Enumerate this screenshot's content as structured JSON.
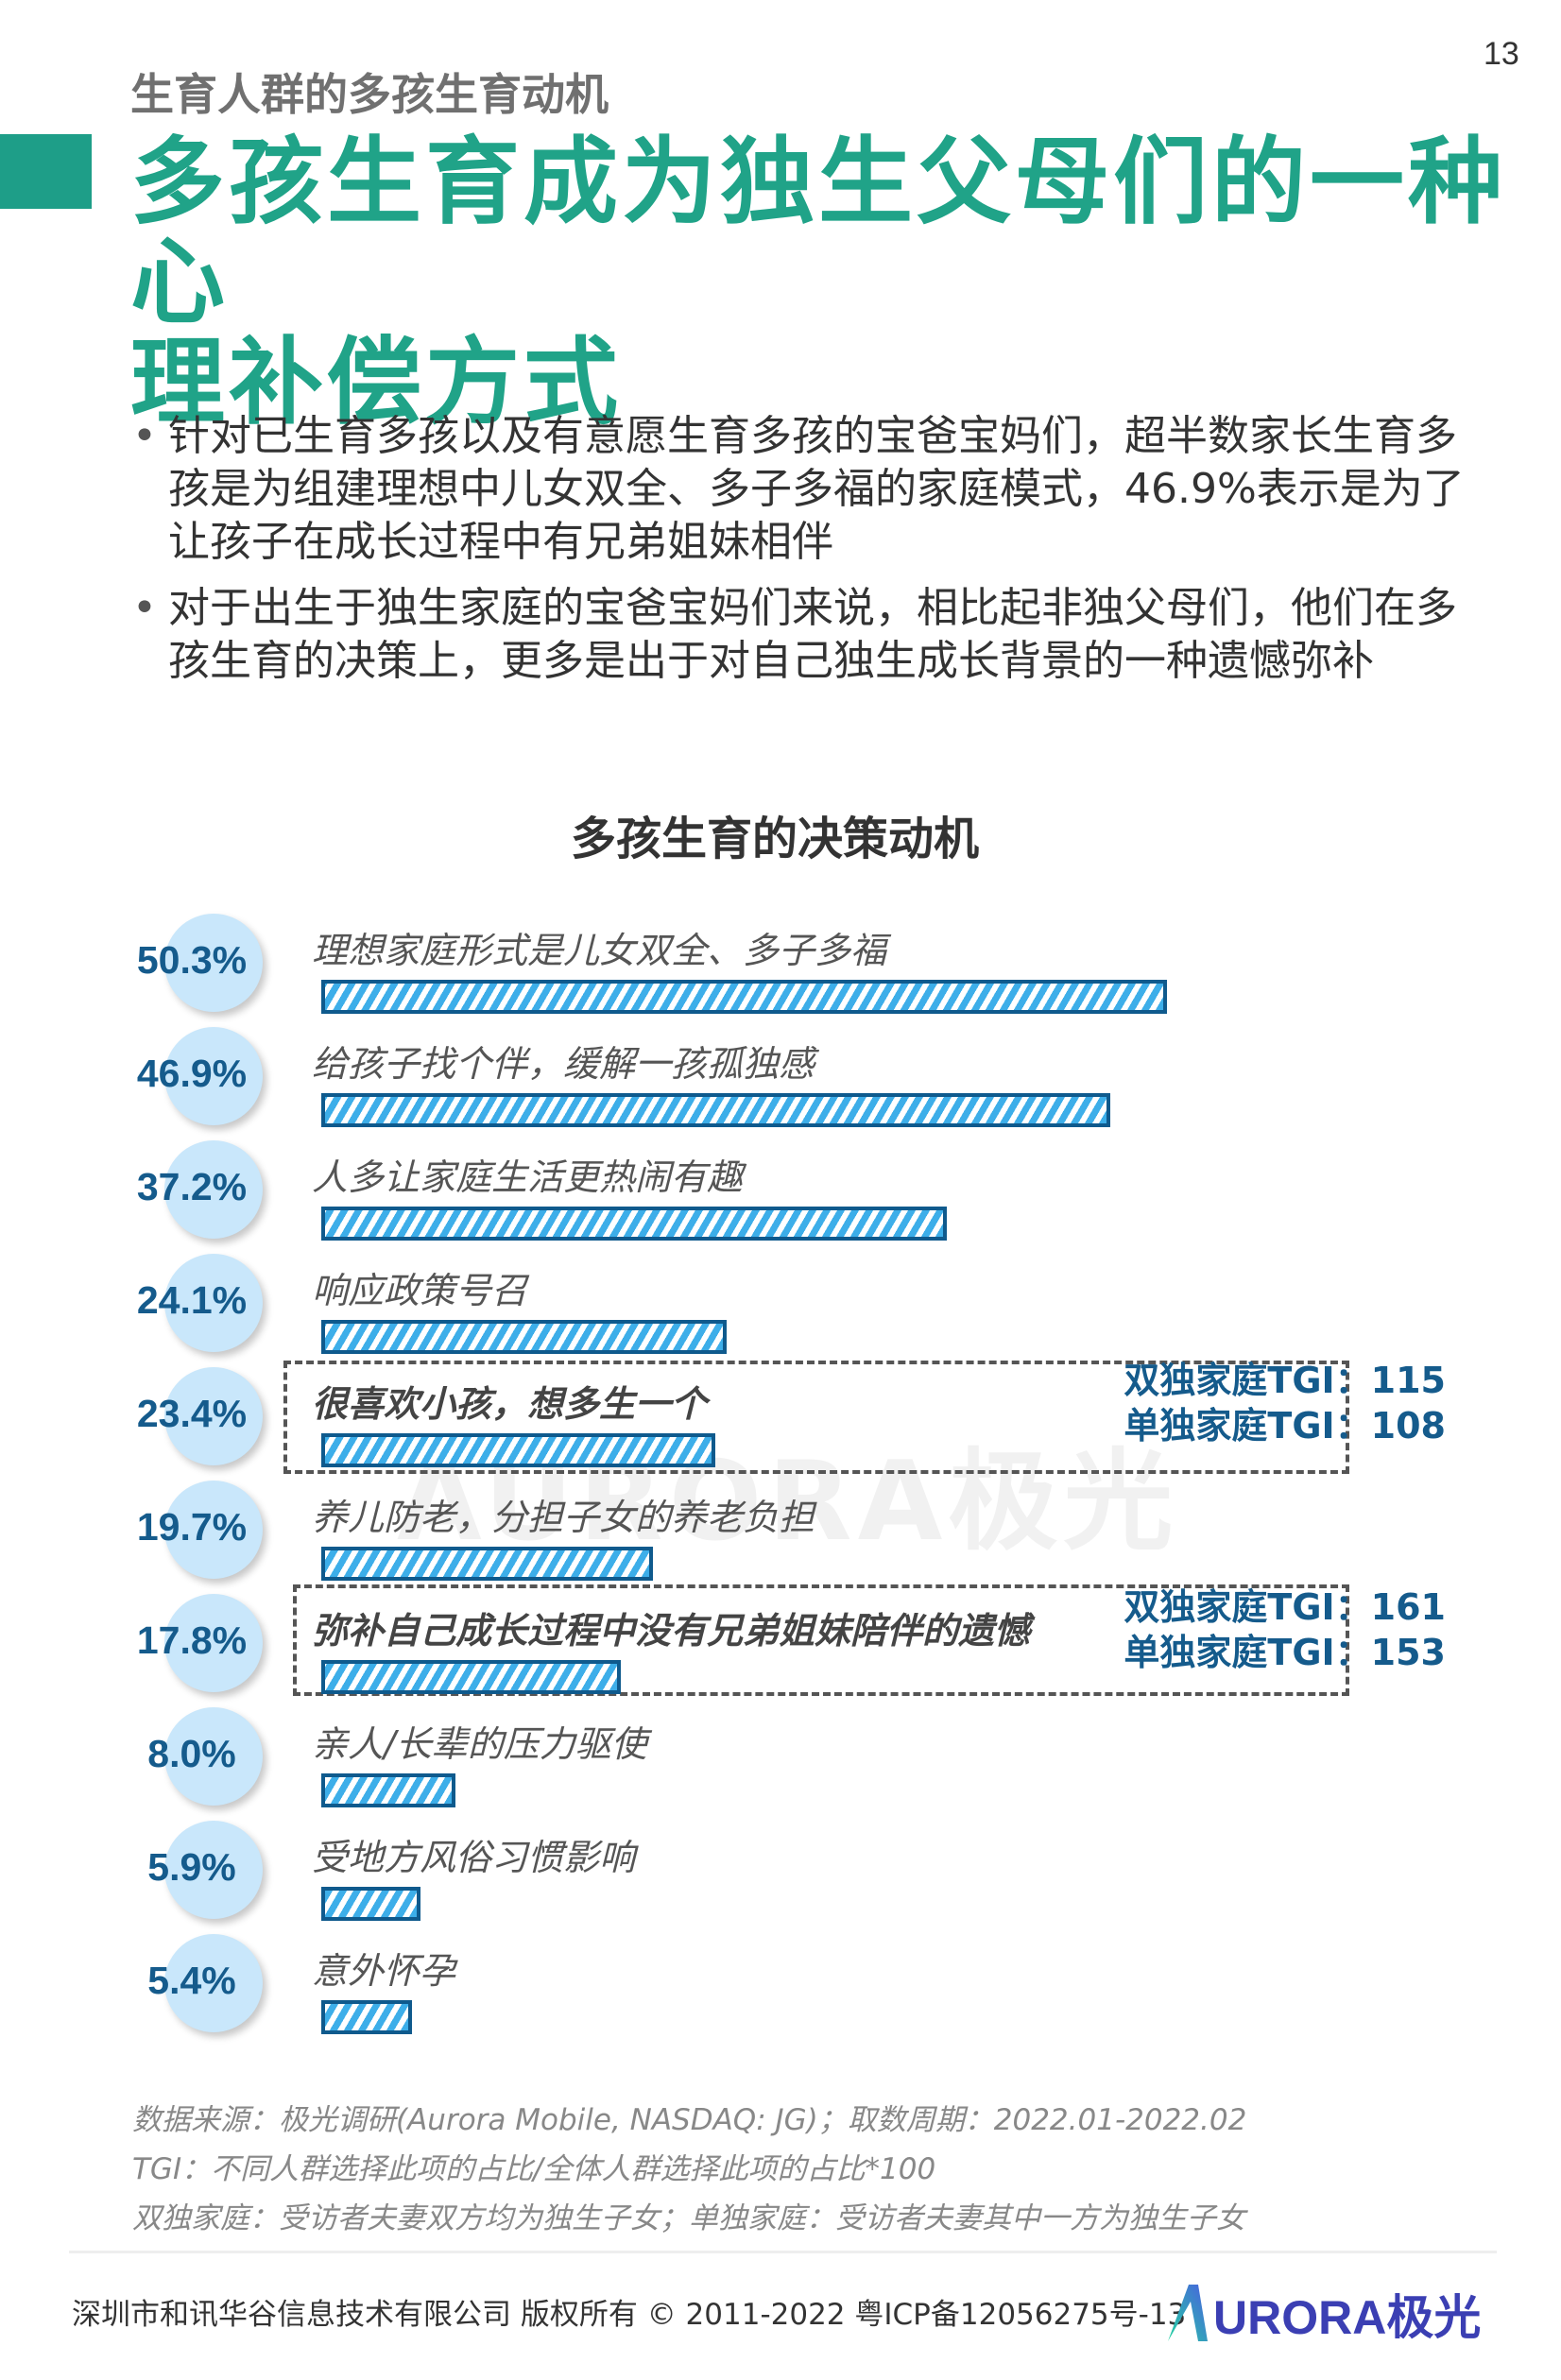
{
  "page_number": "13",
  "header": {
    "section": "生育人群的多孩生育动机",
    "title_lines": [
      "多孩生育成为独生父母们的一种心",
      "理补偿方式"
    ],
    "accent_color": "#1e9e88"
  },
  "bullets": [
    "针对已生育多孩以及有意愿生育多孩的宝爸宝妈们，超半数家长生育多孩是为组建理想中儿女双全、多子多福的家庭模式，46.9%表示是为了让孩子在成长过程中有兄弟姐妹相伴",
    "对于出生于独生家庭的宝爸宝妈们来说，相比起非独父母们，他们在多孩生育的决策上，更多是出于对自己独生成长背景的一种遗憾弥补"
  ],
  "chart_data": {
    "type": "bar",
    "orientation": "horizontal",
    "title": "多孩生育的决策动机",
    "unit": "%",
    "categories": [
      "理想家庭形式是儿女双全、多子多福",
      "给孩子找个伴，缓解一孩孤独感",
      "人多让家庭生活更热闹有趣",
      "响应政策号召",
      "很喜欢小孩，想多生一个",
      "养儿防老，分担子女的养老负担",
      "弥补自己成长过程中没有兄弟姐妹陪伴的遗憾",
      "亲人/长辈的压力驱使",
      "受地方风俗习惯影响",
      "意外怀孕"
    ],
    "values": [
      50.3,
      46.9,
      37.2,
      24.1,
      23.4,
      19.7,
      17.8,
      8.0,
      5.9,
      5.4
    ],
    "value_labels": [
      "50.3%",
      "46.9%",
      "37.2%",
      "24.1%",
      "23.4%",
      "19.7%",
      "17.8%",
      "8.0%",
      "5.9%",
      "5.4%"
    ],
    "highlighted": [
      {
        "index": 4,
        "tgi": [
          "双独家庭TGI：115",
          "单独家庭TGI：108"
        ]
      },
      {
        "index": 6,
        "tgi": [
          "双独家庭TGI：161",
          "单独家庭TGI：153"
        ]
      }
    ],
    "bar_color": "#3daee9",
    "bar_border_color": "#0f5a8d",
    "circle_color": "#c9e7fb",
    "value_color": "#155b8c"
  },
  "watermark": "AURORA极光",
  "notes": [
    "数据来源：极光调研(Aurora Mobile, NASDAQ: JG)；取数周期：2022.01-2022.02",
    "TGI：不同人群选择此项的占比/全体人群选择此项的占比*100",
    "双独家庭：受访者夫妻双方均为独生子女；单独家庭：受访者夫妻其中一方为独生子女"
  ],
  "footer": {
    "copyright": "深圳市和讯华谷信息技术有限公司 版权所有 © 2011-2022 粤ICP备12056275号-13",
    "logo_text": "URORA极光"
  }
}
